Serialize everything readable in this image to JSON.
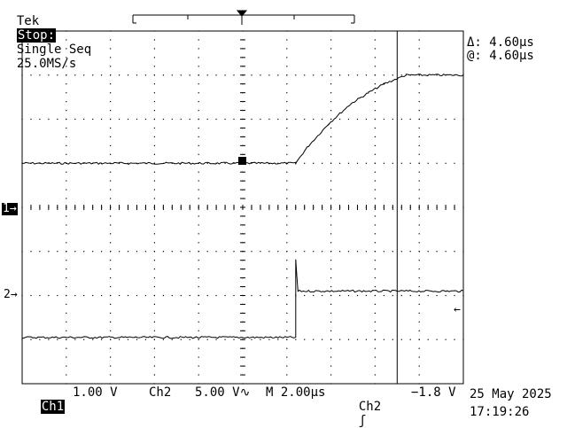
{
  "header": {
    "brand": "Tek",
    "state": "Stop:",
    "acquisition": "Single Seq",
    "sample_rate": "25.0MS/s"
  },
  "cursor_readout": {
    "delta": "Δ: 4.60µs",
    "at": "@: 4.60µs"
  },
  "markers": {
    "ch1_ground": "1→",
    "ch2_ground": "2→",
    "trigger_level": "←"
  },
  "footer": {
    "ch1_label": "Ch1",
    "ch1_scale": "1.00 V",
    "ch2_label": "Ch2",
    "ch2_scale": "5.00 V∿",
    "timebase": "M 2.00µs",
    "trigger_source": "Ch2",
    "trigger_slope": "ʃ",
    "trigger_level": "−1.8 V",
    "date": "25 May 2025",
    "time": "17:19:26"
  },
  "chart_data": {
    "type": "line",
    "x_unit": "µs",
    "x_range": [
      -12.4,
      7.6
    ],
    "trigger_position": 0,
    "cursor_x": 4.6,
    "series": [
      {
        "channel": "Ch1",
        "color": "#000000",
        "ground_div": 0,
        "points": [
          [
            -12.4,
            1.0
          ],
          [
            0,
            1.0
          ],
          [
            0.5,
            1.35
          ],
          [
            1.5,
            1.9
          ],
          [
            2.5,
            2.35
          ],
          [
            3.3,
            2.6
          ],
          [
            4.0,
            2.8
          ],
          [
            5.0,
            3.0
          ],
          [
            7.6,
            3.0
          ]
        ]
      },
      {
        "channel": "Ch2",
        "color": "#000000",
        "ground_div": -2,
        "points": [
          [
            -12.4,
            -2.95
          ],
          [
            0,
            -2.95
          ],
          [
            0,
            -1.2
          ],
          [
            0.1,
            -1.9
          ],
          [
            7.6,
            -1.9
          ]
        ]
      }
    ]
  }
}
